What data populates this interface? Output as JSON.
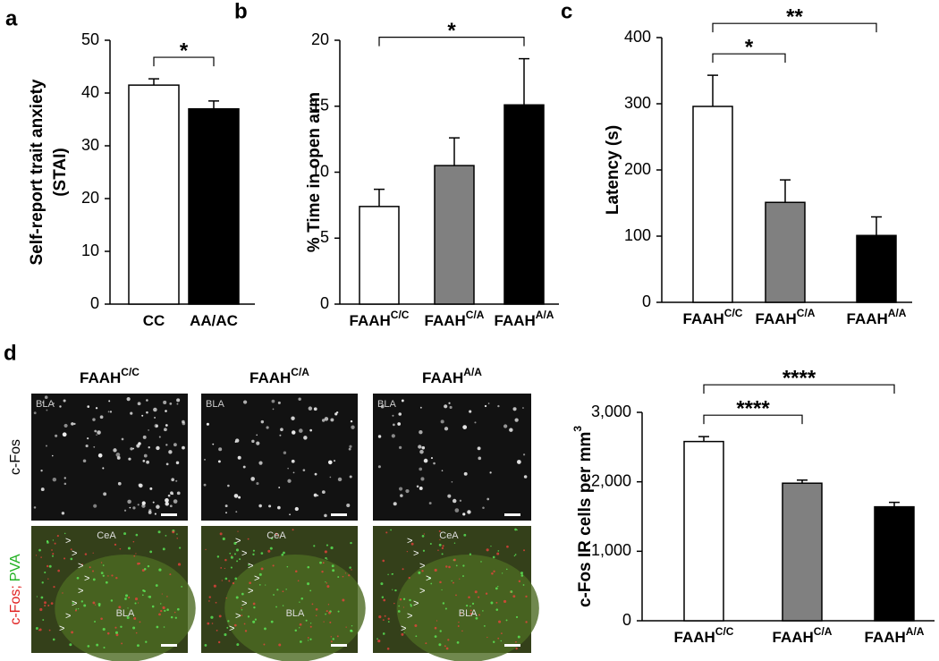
{
  "chart_data": [
    {
      "type": "bar",
      "panel": "a",
      "ylabel": [
        "Self-report trait anxiety",
        "(STAI)"
      ],
      "categories": [
        "CC",
        "AA/AC"
      ],
      "category_superscripts": [
        "",
        ""
      ],
      "values": [
        41.5,
        37
      ],
      "errors": [
        1.2,
        1.5
      ],
      "colors": [
        "#ffffff",
        "#000000"
      ],
      "ylim": [
        0,
        50
      ],
      "yticks": [
        0,
        10,
        20,
        30,
        40,
        50
      ],
      "significance": [
        {
          "label": "*",
          "between": [
            0,
            1
          ]
        }
      ]
    },
    {
      "type": "bar",
      "panel": "b",
      "ylabel": [
        "% Time in open arm"
      ],
      "categories": [
        "FAAH",
        "FAAH",
        "FAAH"
      ],
      "category_superscripts": [
        "C/C",
        "C/A",
        "A/A"
      ],
      "values": [
        7.4,
        10.5,
        15.1
      ],
      "errors": [
        1.3,
        2.1,
        3.5
      ],
      "colors": [
        "#ffffff",
        "#808080",
        "#000000"
      ],
      "ylim": [
        0,
        20
      ],
      "yticks": [
        0,
        5,
        10,
        15,
        20
      ],
      "significance": [
        {
          "label": "*",
          "between": [
            0,
            2
          ]
        }
      ]
    },
    {
      "type": "bar",
      "panel": "c",
      "ylabel": [
        "Latency (s)"
      ],
      "categories": [
        "FAAH",
        "FAAH",
        "FAAH"
      ],
      "category_superscripts": [
        "C/C",
        "C/A",
        "A/A"
      ],
      "values": [
        296,
        151,
        101
      ],
      "errors": [
        47,
        34,
        28
      ],
      "colors": [
        "#ffffff",
        "#808080",
        "#000000"
      ],
      "ylim": [
        0,
        400
      ],
      "yticks": [
        0,
        100,
        200,
        300,
        400
      ],
      "significance": [
        {
          "label": "*",
          "between": [
            0,
            1
          ]
        },
        {
          "label": "**",
          "between": [
            0,
            2
          ]
        }
      ]
    },
    {
      "type": "bar",
      "panel": "d",
      "ylabel": [
        "c-Fos IR cells per mm"
      ],
      "ylabel_superscript": "3",
      "categories": [
        "FAAH",
        "FAAH",
        "FAAH"
      ],
      "category_superscripts": [
        "C/C",
        "C/A",
        "A/A"
      ],
      "values": [
        2580,
        1980,
        1640
      ],
      "errors": [
        70,
        45,
        65
      ],
      "colors": [
        "#ffffff",
        "#808080",
        "#000000"
      ],
      "ylim": [
        0,
        3000
      ],
      "yticks": [
        0,
        {
          "value": 1000,
          "label": "1,000"
        },
        {
          "value": 2000,
          "label": "2,000"
        },
        {
          "value": 3000,
          "label": "3,000"
        }
      ],
      "significance": [
        {
          "label": "****",
          "between": [
            0,
            1
          ]
        },
        {
          "label": "****",
          "between": [
            0,
            2
          ]
        }
      ]
    }
  ],
  "images": {
    "columns": [
      {
        "label": "FAAH",
        "superscript": "C/C"
      },
      {
        "label": "FAAH",
        "superscript": "C/A"
      },
      {
        "label": "FAAH",
        "superscript": "A/A"
      }
    ],
    "row1_label": "c-Fos",
    "row2_label": [
      "c-Fos;",
      "PVA"
    ],
    "region_bla": "BLA",
    "region_cea": "CeA",
    "arrow": ">"
  }
}
